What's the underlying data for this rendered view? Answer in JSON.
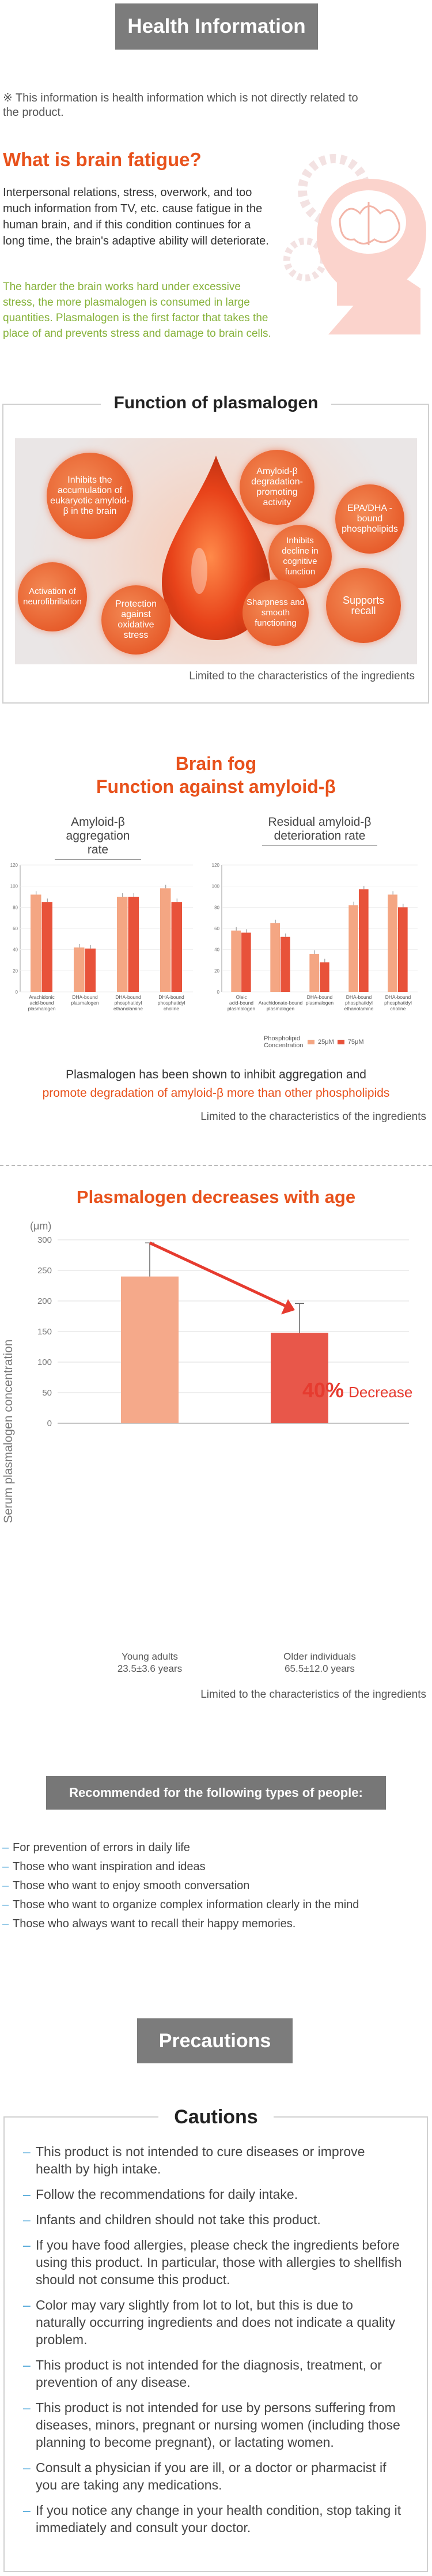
{
  "header": {
    "title": "Health Information"
  },
  "disclaimer": "※ This information is health information which is not directly related to the product.",
  "brain_fatigue": {
    "title": "What is brain fatigue?",
    "body": "Interpersonal relations, stress, overwork, and too much information from TV, etc. cause fatigue in the human brain, and if this condition continues for a long time, the brain's adaptive ability will deteriorate.",
    "highlight": "The harder the brain works hard under excessive stress, the more plasmalogen is consumed in large quantities. Plasmalogen is the first factor that takes the place of and prevents stress and damage to brain cells."
  },
  "function": {
    "title": "Function of plasmalogen",
    "bubbles": [
      "Inhibits the accumulation of eukaryotic amyloid-β in the brain",
      "Amyloid-β degradation-promoting activity",
      "EPA/DHA -bound phospholipids",
      "Inhibits decline in cognitive function",
      "Activation of neurofibrillation",
      "Protection against oxidative stress",
      "Sharpness and smooth functioning",
      "Supports recall"
    ],
    "footnote": "Limited to the characteristics of the ingredients"
  },
  "brain_fog": {
    "title_line1": "Brain fog",
    "title_line2": "Function against amyloid-β",
    "chart_left_title": "Amyloid-β aggregation rate",
    "chart_right_title": "Residual amyloid-β deterioration rate",
    "legend_label": "Phospholipid Concentration",
    "legend_items": [
      "25μM",
      "75μM"
    ],
    "summary_line1": "Plasmalogen has been shown to inhibit aggregation and",
    "summary_line2": "promote degradation of amyloid-β more than other phospholipids",
    "footnote": "Limited to the characteristics of the ingredients"
  },
  "age_chart": {
    "title": "Plasmalogen decreases with age",
    "unit": "(μm)",
    "ylabel": "Serum plasmalogen concentration",
    "decrease_pct": "40%",
    "decrease_word": "Decrease",
    "footnote": "Limited to the characteristics of the ingredients"
  },
  "chart_data": [
    {
      "type": "bar",
      "title": "Amyloid-β aggregation rate",
      "categories": [
        "Arachidonic acid-bound plasmalogen",
        "DHA-bound plasmalogen",
        "DHA-bound phosphatidyl ethanolamine",
        "DHA-bound phosphatidyl choline"
      ],
      "series": [
        {
          "name": "25μM",
          "values": [
            92,
            42,
            90,
            98
          ]
        },
        {
          "name": "75μM",
          "values": [
            85,
            41,
            90,
            85
          ]
        }
      ],
      "ylim": [
        0,
        120
      ],
      "yticks": [
        "0",
        "20",
        "40",
        "60",
        "80",
        "100",
        "120"
      ],
      "colors": [
        "#f4a683",
        "#e8523a"
      ]
    },
    {
      "type": "bar",
      "title": "Residual amyloid-β deterioration rate",
      "categories": [
        "Oleic acid-bound plasmalogen",
        "Arachidonate-bound plasmalogen",
        "DHA-bound plasmalogen",
        "DHA-bound phosphatidyl ethanolamine",
        "DHA-bound phosphatidyl choline"
      ],
      "series": [
        {
          "name": "25μM",
          "values": [
            58,
            65,
            36,
            82,
            92
          ]
        },
        {
          "name": "75μM",
          "values": [
            56,
            52,
            28,
            97,
            80
          ]
        }
      ],
      "ylim": [
        0,
        120
      ],
      "yticks": [
        "0",
        "20",
        "40",
        "60",
        "80",
        "100",
        "120"
      ],
      "colors": [
        "#f4a683",
        "#e8523a"
      ]
    },
    {
      "type": "bar",
      "title": "Plasmalogen decreases with age",
      "ylabel": "Serum plasmalogen concentration",
      "categories": [
        "Young adults 23.5±3.6 years",
        "Older individuals 65.5±12.0 years"
      ],
      "values": [
        240,
        148
      ],
      "errors": [
        55,
        48
      ],
      "ylim": [
        0,
        300
      ],
      "yticks": [
        "0",
        "50",
        "100",
        "150",
        "200",
        "250",
        "300"
      ],
      "colors": [
        "#f5a98a",
        "#e8574a"
      ]
    }
  ],
  "recommended": {
    "title": "Recommended for the following types of people:",
    "items": [
      "For prevention of errors in daily life",
      "Those who want inspiration and ideas",
      "Those who want to enjoy smooth conversation",
      "Those who want to organize complex information clearly in the mind",
      "Those who always want to recall their happy memories."
    ]
  },
  "precautions": {
    "title": "Precautions",
    "subtitle": "Cautions",
    "items": [
      "This product is not intended to cure diseases or improve health by high intake.",
      "Follow the recommendations for daily intake.",
      "Infants and children should not take this product.",
      "If you have food allergies, please check the ingredients before using this product. In particular, those with allergies to shellfish should not consume this product.",
      "Color may vary slightly from lot to lot, but this is due to naturally occurring ingredients and does not indicate a quality problem.",
      "This product is not intended for the diagnosis, treatment, or prevention of any disease.",
      "This product is not intended for use by persons suffering from diseases, minors, pregnant or nursing women (including those planning to become pregnant), or lactating women.",
      "Consult a physician if you are ill, or a doctor or pharmacist if you are taking any medications.",
      "If you notice any change in your health condition, stop taking it immediately and consult your doctor."
    ]
  }
}
